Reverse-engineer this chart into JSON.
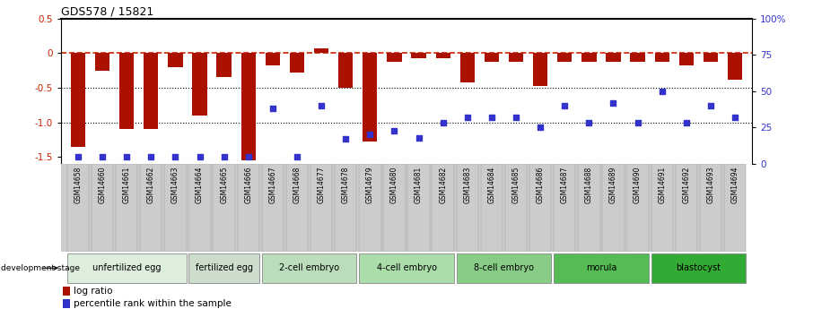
{
  "title": "GDS578 / 15821",
  "samples": [
    "GSM14658",
    "GSM14660",
    "GSM14661",
    "GSM14662",
    "GSM14663",
    "GSM14664",
    "GSM14665",
    "GSM14666",
    "GSM14667",
    "GSM14668",
    "GSM14677",
    "GSM14678",
    "GSM14679",
    "GSM14680",
    "GSM14681",
    "GSM14682",
    "GSM14683",
    "GSM14684",
    "GSM14685",
    "GSM14686",
    "GSM14687",
    "GSM14688",
    "GSM14689",
    "GSM14690",
    "GSM14691",
    "GSM14692",
    "GSM14693",
    "GSM14694"
  ],
  "log_ratio": [
    -1.35,
    -0.25,
    -1.1,
    -1.1,
    -0.2,
    -0.9,
    -0.35,
    -1.55,
    -0.18,
    -0.28,
    0.07,
    -0.5,
    -1.28,
    -0.12,
    -0.08,
    -0.08,
    -0.42,
    -0.12,
    -0.12,
    -0.48,
    -0.12,
    -0.12,
    -0.12,
    -0.12,
    -0.12,
    -0.18,
    -0.12,
    -0.38
  ],
  "percentile": [
    5,
    5,
    5,
    5,
    5,
    5,
    5,
    5,
    38,
    5,
    40,
    17,
    20,
    23,
    18,
    28,
    32,
    32,
    32,
    25,
    40,
    28,
    42,
    28,
    50,
    28,
    40,
    32
  ],
  "stage_groups": [
    {
      "label": "unfertilized egg",
      "start": 0,
      "end": 4
    },
    {
      "label": "fertilized egg",
      "start": 5,
      "end": 7
    },
    {
      "label": "2-cell embryo",
      "start": 8,
      "end": 11
    },
    {
      "label": "4-cell embryo",
      "start": 12,
      "end": 15
    },
    {
      "label": "8-cell embryo",
      "start": 16,
      "end": 19
    },
    {
      "label": "morula",
      "start": 20,
      "end": 23
    },
    {
      "label": "blastocyst",
      "start": 24,
      "end": 27
    }
  ],
  "stage_colors": [
    "#ddeedd",
    "#ccddcc",
    "#bbddbb",
    "#aaddaa",
    "#88cc88",
    "#55bb55",
    "#33aa33"
  ],
  "bar_color": "#aa1100",
  "dot_color": "#3333cc",
  "dashed_color": "#cc2200",
  "ylim_left": [
    -1.6,
    0.5
  ],
  "ylim_right": [
    0,
    100
  ],
  "ylabel_left_ticks": [
    -1.5,
    -1.0,
    -0.5,
    0.0,
    0.5
  ],
  "ylabel_right_ticks": [
    0,
    25,
    50,
    75,
    100
  ],
  "bg_color": "#ffffff"
}
